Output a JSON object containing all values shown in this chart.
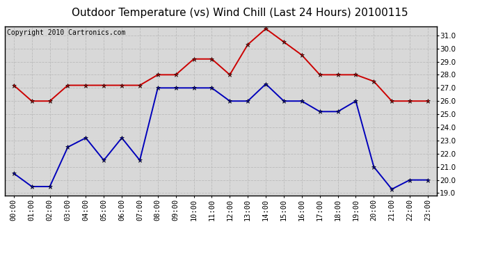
{
  "title": "Outdoor Temperature (vs) Wind Chill (Last 24 Hours) 20100115",
  "copyright_text": "Copyright 2010 Cartronics.com",
  "hours": [
    "00:00",
    "01:00",
    "02:00",
    "03:00",
    "04:00",
    "05:00",
    "06:00",
    "07:00",
    "08:00",
    "09:00",
    "10:00",
    "11:00",
    "12:00",
    "13:00",
    "14:00",
    "15:00",
    "16:00",
    "17:00",
    "18:00",
    "19:00",
    "20:00",
    "21:00",
    "22:00",
    "23:00"
  ],
  "outdoor_temp": [
    20.5,
    19.5,
    19.5,
    22.5,
    23.2,
    21.5,
    23.2,
    21.5,
    27.0,
    27.0,
    27.0,
    27.0,
    26.0,
    26.0,
    27.3,
    26.0,
    26.0,
    25.2,
    25.2,
    26.0,
    21.0,
    19.3,
    20.0,
    20.0
  ],
  "wind_chill": [
    27.2,
    26.0,
    26.0,
    27.2,
    27.2,
    27.2,
    27.2,
    27.2,
    28.0,
    28.0,
    29.2,
    29.2,
    28.0,
    30.3,
    31.5,
    30.5,
    29.5,
    28.0,
    28.0,
    28.0,
    27.5,
    26.0,
    26.0,
    26.0
  ],
  "ylim_min": 18.8,
  "ylim_max": 31.7,
  "ytick_values": [
    19.0,
    20.0,
    21.0,
    22.0,
    23.0,
    24.0,
    25.0,
    26.0,
    27.0,
    28.0,
    29.0,
    30.0,
    31.0
  ],
  "outdoor_color": "#0000bb",
  "windchill_color": "#cc0000",
  "background_color": "#d8d8d8",
  "fig_background": "#ffffff",
  "grid_color": "#bbbbbb",
  "title_fontsize": 11,
  "copyright_fontsize": 7,
  "tick_fontsize": 7.5,
  "marker": "*",
  "markersize": 5
}
